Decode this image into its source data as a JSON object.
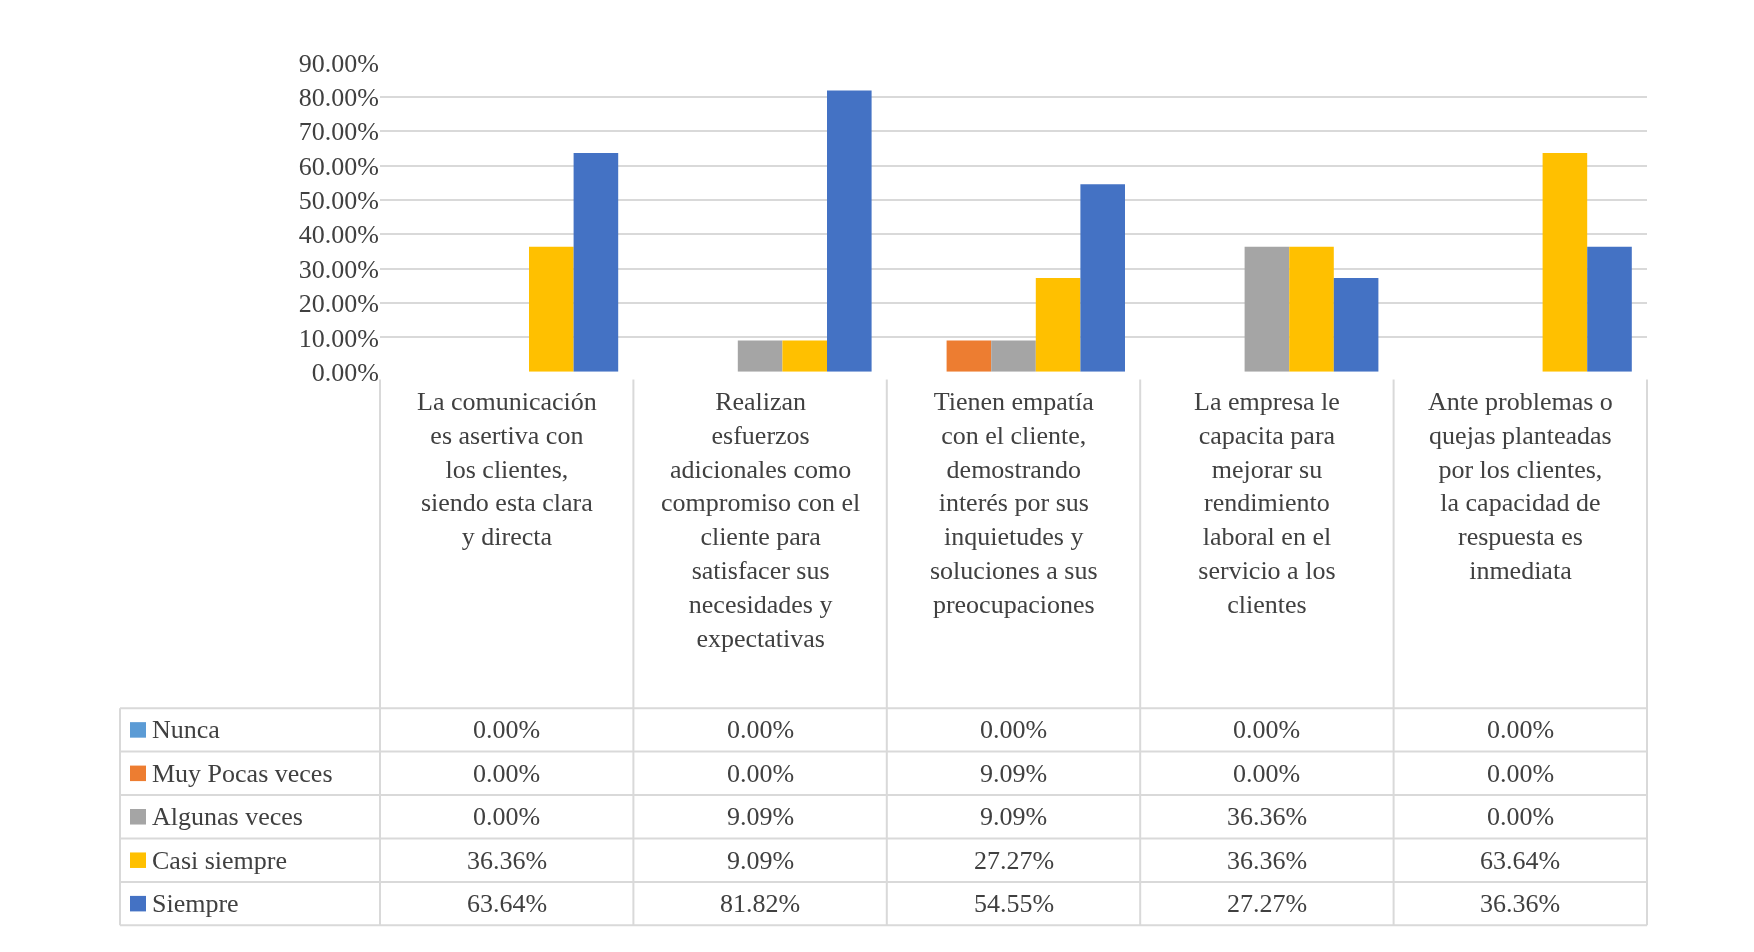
{
  "chart_data": {
    "type": "bar",
    "categories": [
      "La comunicación es asertiva con los clientes, siendo esta clara y directa",
      "Realizan esfuerzos adicionales como compromiso con el cliente para satisfacer sus necesidades y expectativas",
      "Tienen empatía con el cliente, demostrando interés por sus inquietudes y soluciones a sus preocupaciones",
      "La empresa le capacita para mejorar su rendimiento laboral en el servicio a los clientes",
      "Ante problemas o quejas planteadas por los clientes, la capacidad de respuesta es inmediata"
    ],
    "series": [
      {
        "name": "Nunca",
        "color": "#5b9bd5",
        "values": [
          0,
          0,
          0,
          0,
          0
        ],
        "value_labels": [
          "0.00%",
          "0.00%",
          "0.00%",
          "0.00%",
          "0.00%"
        ]
      },
      {
        "name": "Muy Pocas veces",
        "color": "#ed7d31",
        "values": [
          0,
          0,
          9.09,
          0,
          0
        ],
        "value_labels": [
          "0.00%",
          "0.00%",
          "9.09%",
          "0.00%",
          "0.00%"
        ]
      },
      {
        "name": "Algunas veces",
        "color": "#a5a5a5",
        "values": [
          0,
          9.09,
          9.09,
          36.36,
          0
        ],
        "value_labels": [
          "0.00%",
          "9.09%",
          "9.09%",
          "36.36%",
          "0.00%"
        ]
      },
      {
        "name": "Casi siempre",
        "color": "#ffc000",
        "values": [
          36.36,
          9.09,
          27.27,
          36.36,
          63.64
        ],
        "value_labels": [
          "36.36%",
          "9.09%",
          "27.27%",
          "36.36%",
          "63.64%"
        ]
      },
      {
        "name": "Siempre",
        "color": "#4472c4",
        "values": [
          63.64,
          81.82,
          54.55,
          27.27,
          36.36
        ],
        "value_labels": [
          "63.64%",
          "81.82%",
          "54.55%",
          "27.27%",
          "36.36%"
        ]
      }
    ],
    "ylim": [
      0,
      90
    ],
    "yticks": [
      {
        "value": 0,
        "label": "0.00%"
      },
      {
        "value": 10,
        "label": "10.00%"
      },
      {
        "value": 20,
        "label": "20.00%"
      },
      {
        "value": 30,
        "label": "30.00%"
      },
      {
        "value": 40,
        "label": "40.00%"
      },
      {
        "value": 50,
        "label": "50.00%"
      },
      {
        "value": 60,
        "label": "60.00%"
      },
      {
        "value": 70,
        "label": "70.00%"
      },
      {
        "value": 80,
        "label": "80.00%"
      },
      {
        "value": 90,
        "label": "90.00%"
      }
    ],
    "grid": "y",
    "legend": "bottom"
  }
}
